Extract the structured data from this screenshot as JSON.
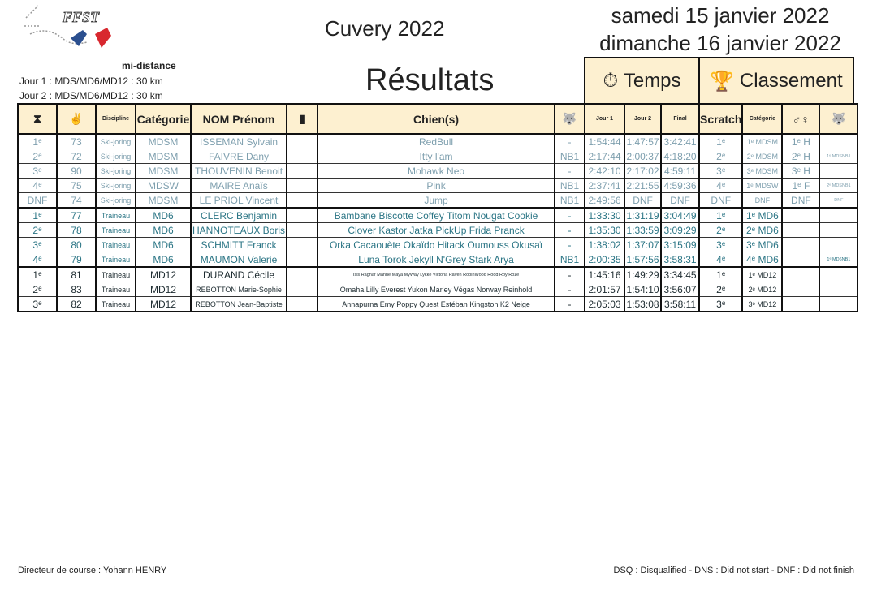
{
  "header": {
    "logo_text": "FFST",
    "event": "Cuvery 2022",
    "date1": "samedi 15 janvier 2022",
    "date2": "dimanche 16 janvier 2022",
    "format": "mi-distance",
    "jour1": "Jour 1 :  MDS/MD6/MD12 : 30 km",
    "jour2": "Jour 2 :  MDS/MD6/MD12 : 30 km",
    "title": "Résultats",
    "temps": "Temps",
    "classement": "Classement",
    "temps_icon": "stopwatch-icon",
    "classement_icon": "trophy-icon"
  },
  "columns": [
    "⧗",
    "✌",
    "Discipline",
    "Catégorie",
    "NOM Prénom",
    "▮",
    "Chien(s)",
    "🐺",
    "Jour 1",
    "Jour 2",
    "Final",
    "Scratch",
    "Catégorie",
    "♂♀",
    "🐺"
  ],
  "rows": [
    [
      "1ᵉ",
      "73",
      "Ski-joring",
      "MDSM",
      "ISSEMAN Sylvain",
      "",
      "RedBull",
      "-",
      "1:54:44",
      "1:47:57",
      "3:42:41",
      "1ᵉ",
      "1ᵉ MDSM",
      "1ᵉ H",
      ""
    ],
    [
      "2ᵉ",
      "72",
      "Ski-joring",
      "MDSM",
      "FAIVRE Dany",
      "",
      "Itty l'am",
      "NB1",
      "2:17:44",
      "2:00:37",
      "4:18:20",
      "2ᵉ",
      "2ᵉ MDSM",
      "2ᵉ H",
      "1ᵉ MDSNB1"
    ],
    [
      "3ᵉ",
      "90",
      "Ski-joring",
      "MDSM",
      "THOUVENIN Benoit",
      "",
      "Mohawk Neo",
      "-",
      "2:42:10",
      "2:17:02",
      "4:59:11",
      "3ᵉ",
      "3ᵉ MDSM",
      "3ᵉ H",
      ""
    ],
    [
      "4ᵉ",
      "75",
      "Ski-joring",
      "MDSW",
      "MAIRE Anaïs",
      "",
      "Pink",
      "NB1",
      "2:37:41",
      "2:21:55",
      "4:59:36",
      "4ᵉ",
      "1ᵉ MDSW",
      "1ᵉ F",
      "2ᵉ MDSNB1"
    ],
    [
      "DNF",
      "74",
      "Ski-joring",
      "MDSM",
      "LE PRIOL Vincent",
      "",
      "Jump",
      "NB1",
      "2:49:56",
      "DNF",
      "DNF",
      "DNF",
      "DNF",
      "DNF",
      "DNF"
    ],
    [
      "1ᵉ",
      "77",
      "Traineau",
      "MD6",
      "CLERC Benjamin",
      "",
      "Bambane Biscotte Coffey Titom Nougat Cookie",
      "-",
      "1:33:30",
      "1:31:19",
      "3:04:49",
      "1ᵉ",
      "1ᵉ MD6",
      "",
      ""
    ],
    [
      "2ᵉ",
      "78",
      "Traineau",
      "MD6",
      "HANNOTEAUX Boris",
      "",
      "Clover Kastor Jatka PickUp Frida Pranck",
      "-",
      "1:35:30",
      "1:33:59",
      "3:09:29",
      "2ᵉ",
      "2ᵉ MD6",
      "",
      ""
    ],
    [
      "3ᵉ",
      "80",
      "Traineau",
      "MD6",
      "SCHMITT Franck",
      "",
      "Orka Cacaouète Okaïdo Hitack Oumouss Okusaï",
      "-",
      "1:38:02",
      "1:37:07",
      "3:15:09",
      "3ᵉ",
      "3ᵉ MD6",
      "",
      ""
    ],
    [
      "4ᵉ",
      "79",
      "Traineau",
      "MD6",
      "MAUMON Valerie",
      "",
      "Luna Torok Jekyll N'Grey Stark Arya",
      "NB1",
      "2:00:35",
      "1:57:56",
      "3:58:31",
      "4ᵉ",
      "4ᵉ MD6",
      "",
      "1ᵉ MD6NB1"
    ],
    [
      "1ᵉ",
      "81",
      "Traineau",
      "MD12",
      "DURAND Cécile",
      "",
      "Isis Ragnar Manne Maya MyWay Lykke Victoria Raven RobinWood Rodd Roy Roze",
      "-",
      "1:45:16",
      "1:49:29",
      "3:34:45",
      "1ᵉ",
      "1ᵉ MD12",
      "",
      ""
    ],
    [
      "2ᵉ",
      "83",
      "Traineau",
      "MD12",
      "REBOTTON Marie-Sophie",
      "",
      "Omaha Lilly Everest Yukon Marley Végas Norway Reinhold",
      "-",
      "2:01:57",
      "1:54:10",
      "3:56:07",
      "2ᵉ",
      "2ᵉ MD12",
      "",
      ""
    ],
    [
      "3ᵉ",
      "82",
      "Traineau",
      "MD12",
      "REBOTTON Jean-Baptiste",
      "",
      "Annapurna Emy Poppy Quest Estéban Kingston K2 Neige",
      "-",
      "2:05:03",
      "1:53:08",
      "3:58:11",
      "3ᵉ",
      "3ᵉ MD12",
      "",
      ""
    ]
  ],
  "footer": {
    "director": "Directeur de course : Yohann HENRY",
    "legend": "DSQ : Disqualified - DNS : Did not start - DNF : Did not finish"
  }
}
